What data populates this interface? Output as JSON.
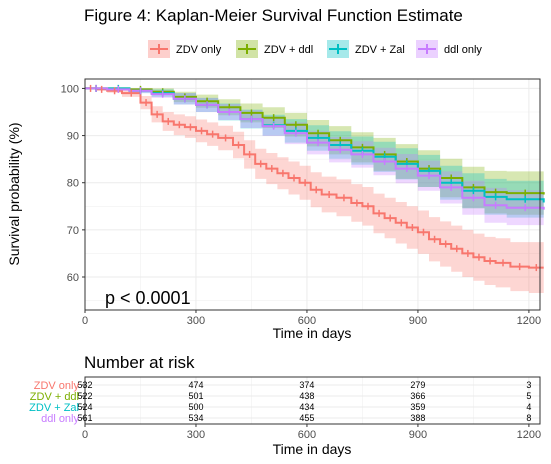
{
  "chart_data": [
    {
      "type": "line",
      "title": "Figure 4: Kaplan-Meier Survival Function Estimate",
      "xlabel": "Time in days",
      "ylabel": "Survival probability (%)",
      "xlim": [
        0,
        1230
      ],
      "ylim": [
        53,
        102
      ],
      "xticks": [
        "0",
        "300",
        "600",
        "900",
        "1200"
      ],
      "yticks": [
        "60",
        "70",
        "80",
        "90",
        "100"
      ],
      "grid": true,
      "legend_position": "top",
      "annotation": "p < 0.0001",
      "series": [
        {
          "name": "ZDV only",
          "color": "#f8766d",
          "x": [
            0,
            30,
            60,
            100,
            150,
            180,
            210,
            240,
            270,
            300,
            330,
            360,
            400,
            430,
            460,
            490,
            520,
            550,
            580,
            610,
            640,
            680,
            720,
            750,
            780,
            810,
            840,
            870,
            900,
            930,
            960,
            990,
            1020,
            1050,
            1080,
            1110,
            1150,
            1200,
            1240
          ],
          "y": [
            100,
            99.8,
            99.5,
            99,
            97,
            94.5,
            93,
            92.3,
            91.8,
            91,
            90.3,
            89.5,
            88,
            86,
            84,
            83,
            82,
            81,
            80,
            78.5,
            77.5,
            76.8,
            75.7,
            75,
            73.5,
            72.5,
            71.5,
            70.5,
            69.5,
            68,
            67,
            66,
            65,
            64.2,
            63.4,
            63,
            62.2,
            62,
            62
          ],
          "lower": [
            100,
            99.6,
            99.1,
            98.2,
            95.6,
            92.8,
            91,
            90.1,
            89.5,
            88.6,
            87.8,
            86.9,
            85.2,
            83,
            80.8,
            79.7,
            78.6,
            77.5,
            76.4,
            74.8,
            73.7,
            72.9,
            71.7,
            70.9,
            69.3,
            68.2,
            67.1,
            66,
            64.9,
            63.3,
            62.2,
            61.1,
            60,
            59.2,
            58.3,
            57.8,
            57,
            56.6,
            56.6
          ],
          "upper": [
            100,
            100,
            99.9,
            99.8,
            98.4,
            96.2,
            95,
            94.5,
            94.1,
            93.4,
            92.8,
            92.1,
            90.8,
            89,
            87.2,
            86.3,
            85.4,
            84.5,
            83.6,
            82.2,
            81.3,
            80.7,
            79.7,
            79.1,
            77.7,
            76.8,
            75.9,
            75,
            74.1,
            72.7,
            71.8,
            70.9,
            70,
            69.2,
            68.5,
            68.2,
            67.4,
            67.4,
            67.4
          ]
        },
        {
          "name": "ZDV + ddl",
          "color": "#7cae00",
          "x": [
            0,
            60,
            120,
            180,
            240,
            300,
            360,
            420,
            480,
            540,
            600,
            660,
            720,
            780,
            840,
            900,
            960,
            1020,
            1080,
            1140,
            1240
          ],
          "y": [
            100,
            100,
            99.8,
            99.3,
            98.2,
            97.3,
            96,
            94.8,
            93.8,
            92.3,
            90.5,
            89,
            87.5,
            86,
            84.5,
            83,
            81,
            79,
            78,
            77.8,
            77.5
          ],
          "lower": [
            100,
            100,
            99.4,
            98.6,
            97.1,
            95.9,
            94.3,
            92.8,
            91.6,
            89.8,
            87.7,
            86,
            84.3,
            82.5,
            80.8,
            79.1,
            76.9,
            74.6,
            73.5,
            73.2,
            72.8
          ],
          "upper": [
            100,
            100,
            100,
            100,
            99.3,
            98.7,
            97.7,
            96.8,
            96,
            94.8,
            93.3,
            92,
            90.7,
            89.5,
            88.2,
            86.9,
            85.1,
            83.4,
            82.5,
            82.4,
            82.2
          ]
        },
        {
          "name": "ZDV + Zal",
          "color": "#00bfc4",
          "x": [
            0,
            60,
            120,
            180,
            240,
            300,
            360,
            420,
            480,
            540,
            600,
            660,
            720,
            780,
            840,
            900,
            960,
            1020,
            1080,
            1140,
            1240
          ],
          "y": [
            100,
            100,
            99.5,
            99,
            97.8,
            96.5,
            95,
            93.5,
            92.2,
            91,
            89.5,
            88,
            86.8,
            85.5,
            84,
            82.5,
            80,
            78.3,
            77,
            76.5,
            75.8
          ],
          "lower": [
            100,
            100,
            99,
            98.2,
            96.6,
            95,
            93.2,
            91.5,
            90,
            88.5,
            86.8,
            85.1,
            83.8,
            82.3,
            80.7,
            79.1,
            76.4,
            74.6,
            73.2,
            72.6,
            71.8
          ],
          "upper": [
            100,
            100,
            100,
            99.8,
            99,
            98,
            96.8,
            95.5,
            94.4,
            93.5,
            92.2,
            90.9,
            89.8,
            88.7,
            87.3,
            85.9,
            83.6,
            82,
            80.8,
            80.4,
            79.8
          ]
        },
        {
          "name": "ddl only",
          "color": "#c77cff",
          "x": [
            0,
            60,
            120,
            180,
            240,
            300,
            360,
            420,
            480,
            540,
            600,
            660,
            720,
            780,
            840,
            900,
            960,
            1020,
            1080,
            1140,
            1240
          ],
          "y": [
            100,
            99.8,
            99.5,
            98.8,
            97.8,
            96.5,
            95,
            93.5,
            92,
            90.5,
            88.5,
            87,
            86,
            84.5,
            83,
            81.5,
            79,
            76.8,
            75.2,
            74.7,
            74.3
          ],
          "lower": [
            100,
            99.5,
            99,
            98,
            96.6,
            95,
            93.3,
            91.6,
            89.9,
            88.2,
            86,
            84.3,
            83.2,
            81.6,
            79.9,
            78.3,
            75.6,
            73.2,
            71.5,
            71,
            70.5
          ],
          "upper": [
            100,
            100,
            100,
            99.6,
            99,
            98,
            96.7,
            95.4,
            94.1,
            92.8,
            91,
            89.7,
            88.8,
            87.4,
            86.1,
            84.7,
            82.4,
            80.4,
            78.9,
            78.4,
            78.1
          ]
        }
      ]
    },
    {
      "type": "table",
      "title": "Number at risk",
      "xlabel": "Time in days",
      "xticks": [
        "0",
        "300",
        "600",
        "900",
        "1200"
      ],
      "times": [
        0,
        300,
        600,
        900,
        1200
      ],
      "rows": [
        {
          "name": "ZDV only",
          "color": "#f8766d",
          "values": [
            "532",
            "474",
            "374",
            "279",
            "3"
          ]
        },
        {
          "name": "ZDV + ddl",
          "color": "#7cae00",
          "values": [
            "522",
            "501",
            "438",
            "366",
            "5"
          ]
        },
        {
          "name": "ZDV + Zal",
          "color": "#00bfc4",
          "values": [
            "524",
            "500",
            "434",
            "359",
            "4"
          ]
        },
        {
          "name": "ddl only",
          "color": "#c77cff",
          "values": [
            "561",
            "534",
            "455",
            "388",
            "8"
          ]
        }
      ]
    }
  ]
}
